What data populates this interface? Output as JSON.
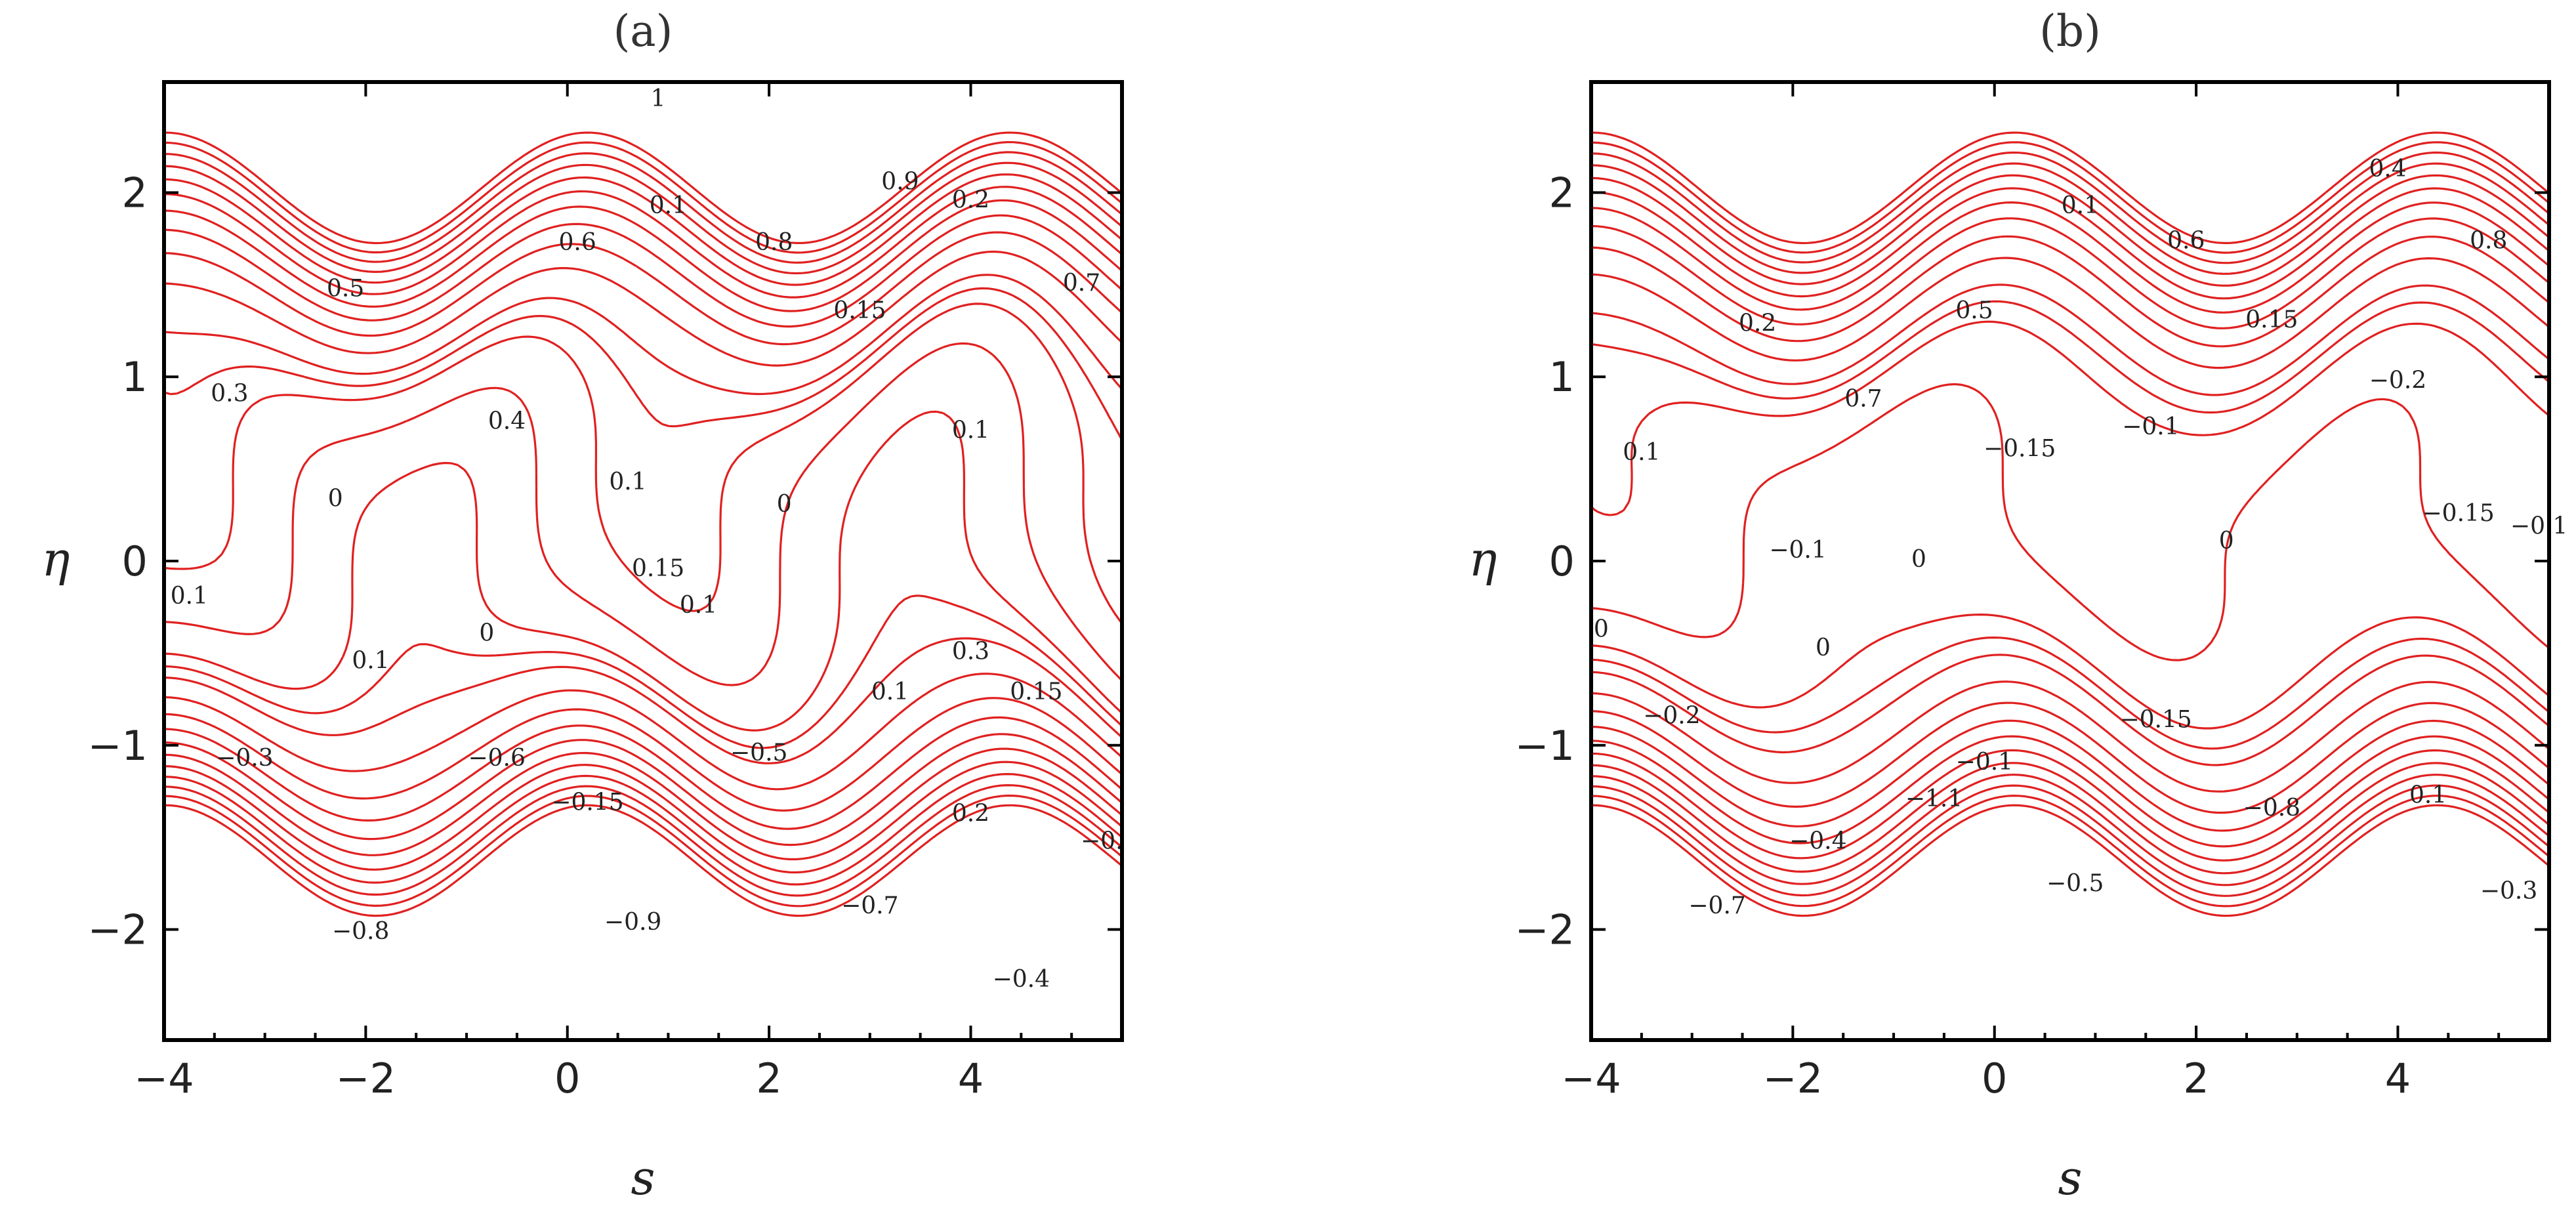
{
  "chart_data": [
    {
      "type": "contour",
      "title": "(a)",
      "xlabel": "s",
      "ylabel": "η",
      "xlim": [
        -4,
        5.5
      ],
      "ylim": [
        -2.6,
        2.6
      ],
      "xticks": [
        "−4",
        "−2",
        "0",
        "2",
        "4"
      ],
      "yticks": [
        "−2",
        "−1",
        "0",
        "1",
        "2"
      ],
      "line_color": "#e02020",
      "contour_labels": [
        {
          "text": "1",
          "x": 0.9,
          "y": 2.5
        },
        {
          "text": "0.1",
          "x": 1.0,
          "y": 1.92
        },
        {
          "text": "0.9",
          "x": 3.3,
          "y": 2.05
        },
        {
          "text": "0.2",
          "x": 4.0,
          "y": 1.95
        },
        {
          "text": "0.6",
          "x": 0.1,
          "y": 1.72
        },
        {
          "text": "0.8",
          "x": 2.05,
          "y": 1.72
        },
        {
          "text": "0.5",
          "x": -2.2,
          "y": 1.47
        },
        {
          "text": "0.15",
          "x": 2.9,
          "y": 1.35
        },
        {
          "text": "0.7",
          "x": 5.1,
          "y": 1.5
        },
        {
          "text": "0.3",
          "x": -3.35,
          "y": 0.9
        },
        {
          "text": "0.4",
          "x": -0.6,
          "y": 0.75
        },
        {
          "text": "0.1",
          "x": 4.0,
          "y": 0.7
        },
        {
          "text": "0.1",
          "x": 0.6,
          "y": 0.42
        },
        {
          "text": "0",
          "x": -2.3,
          "y": 0.33
        },
        {
          "text": "0",
          "x": 2.15,
          "y": 0.3
        },
        {
          "text": "0.15",
          "x": 0.9,
          "y": -0.05
        },
        {
          "text": "0.1",
          "x": 1.3,
          "y": -0.25
        },
        {
          "text": "0.1",
          "x": -3.75,
          "y": -0.2
        },
        {
          "text": "0",
          "x": -0.8,
          "y": -0.4
        },
        {
          "text": "0.3",
          "x": 4.0,
          "y": -0.5
        },
        {
          "text": "0.1",
          "x": -1.95,
          "y": -0.55
        },
        {
          "text": "0.1",
          "x": 3.2,
          "y": -0.72
        },
        {
          "text": "0.15",
          "x": 4.65,
          "y": -0.72
        },
        {
          "text": "−0.3",
          "x": -3.2,
          "y": -1.08
        },
        {
          "text": "−0.6",
          "x": -0.7,
          "y": -1.08
        },
        {
          "text": "−0.5",
          "x": 1.9,
          "y": -1.05
        },
        {
          "text": "−0.15",
          "x": 0.2,
          "y": -1.32
        },
        {
          "text": "0.2",
          "x": 4.0,
          "y": -1.38
        },
        {
          "text": "−0.",
          "x": 5.3,
          "y": -1.53
        },
        {
          "text": "−0.9",
          "x": 0.65,
          "y": -1.97
        },
        {
          "text": "−0.7",
          "x": 3.0,
          "y": -1.88
        },
        {
          "text": "−0.8",
          "x": -2.05,
          "y": -2.02
        },
        {
          "text": "−0.4",
          "x": 4.5,
          "y": -2.28
        }
      ]
    },
    {
      "type": "contour",
      "title": "(b)",
      "xlabel": "s",
      "ylabel": "η",
      "xlim": [
        -4,
        5.5
      ],
      "ylim": [
        -2.6,
        2.6
      ],
      "xticks": [
        "−4",
        "−2",
        "0",
        "2",
        "4"
      ],
      "yticks": [
        "−2",
        "−1",
        "0",
        "1",
        "2"
      ],
      "line_color": "#e02020",
      "contour_labels": [
        {
          "text": "0.4",
          "x": 3.9,
          "y": 2.12
        },
        {
          "text": "0.1",
          "x": 0.85,
          "y": 1.92
        },
        {
          "text": "0.6",
          "x": 1.9,
          "y": 1.73
        },
        {
          "text": "0.8",
          "x": 4.9,
          "y": 1.73
        },
        {
          "text": "0.5",
          "x": -0.2,
          "y": 1.35
        },
        {
          "text": "0.2",
          "x": -2.35,
          "y": 1.28
        },
        {
          "text": "0.15",
          "x": 2.75,
          "y": 1.3
        },
        {
          "text": "−0.2",
          "x": 4.0,
          "y": 0.97
        },
        {
          "text": "0.7",
          "x": -1.3,
          "y": 0.87
        },
        {
          "text": "−0.1",
          "x": 1.55,
          "y": 0.72
        },
        {
          "text": "−0.15",
          "x": 0.25,
          "y": 0.6
        },
        {
          "text": "0.1",
          "x": -3.5,
          "y": 0.58
        },
        {
          "text": "−0.15",
          "x": 4.6,
          "y": 0.25
        },
        {
          "text": "−0.1",
          "x": 5.4,
          "y": 0.18
        },
        {
          "text": "0",
          "x": 2.3,
          "y": 0.1
        },
        {
          "text": "−0.1",
          "x": -1.95,
          "y": 0.05
        },
        {
          "text": "0",
          "x": -0.75,
          "y": 0.0
        },
        {
          "text": "0",
          "x": -3.9,
          "y": -0.38
        },
        {
          "text": "0",
          "x": -1.7,
          "y": -0.48
        },
        {
          "text": "−0.2",
          "x": -3.2,
          "y": -0.85
        },
        {
          "text": "−0.15",
          "x": 1.6,
          "y": -0.87
        },
        {
          "text": "−0.1",
          "x": -0.1,
          "y": -1.1
        },
        {
          "text": "0.1",
          "x": 4.3,
          "y": -1.28
        },
        {
          "text": "−1.1",
          "x": -0.6,
          "y": -1.3
        },
        {
          "text": "−0.8",
          "x": 2.75,
          "y": -1.35
        },
        {
          "text": "−0.4",
          "x": -1.75,
          "y": -1.53
        },
        {
          "text": "−0.5",
          "x": 0.8,
          "y": -1.76
        },
        {
          "text": "−0.3",
          "x": 5.1,
          "y": -1.8
        },
        {
          "text": "−0.7",
          "x": -2.75,
          "y": -1.88
        }
      ]
    }
  ]
}
